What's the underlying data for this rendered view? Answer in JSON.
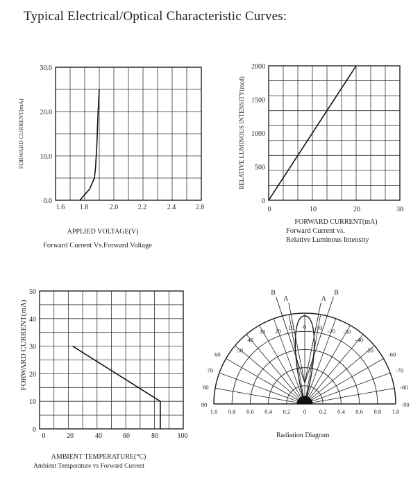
{
  "page": {
    "title": "Typical Electrical/Optical Characteristic Curves:"
  },
  "chart_data": [
    {
      "type": "line",
      "ylabel": "FORWARD CURRENT(mA)",
      "xlabel": "APPLIED VOLTAGE(V)",
      "caption": "Forward Current Vs.Forward Voltage",
      "xlim": [
        1.6,
        2.8
      ],
      "ylim": [
        0,
        30
      ],
      "xticks": [
        "1.6",
        "1.8",
        "2.0",
        "2.2",
        "2.4",
        "2.8"
      ],
      "yticks": [
        "0.0",
        "10.0",
        "20.0",
        "30.0"
      ],
      "grid": true,
      "series": [
        {
          "x": [
            1.8,
            1.88,
            1.92,
            1.93,
            1.94,
            1.95,
            1.96
          ],
          "y": [
            0,
            2.5,
            5,
            7.5,
            12.5,
            20,
            25
          ]
        }
      ]
    },
    {
      "type": "line",
      "ylabel": "RELATIVE LUMINOUS INTENSITY(mcd)",
      "xlabel": "FORWARD CURRENT(mA)",
      "caption": [
        "Forward Current vs.",
        "Relative Luminous Intensity"
      ],
      "xlim": [
        0,
        30
      ],
      "ylim": [
        0,
        2000
      ],
      "xticks": [
        "0",
        "10",
        "20",
        "30"
      ],
      "yticks": [
        "0",
        "500",
        "1000",
        "1500",
        "2000"
      ],
      "grid": true,
      "series": [
        {
          "x": [
            0,
            20
          ],
          "y": [
            0,
            2000
          ]
        }
      ]
    },
    {
      "type": "line",
      "ylabel": "FORWARD CURRENT(mA)",
      "xlabel": "AMBIENT TEMPERATURE(°C)",
      "caption": "Ambient Temperature vs Forward Current",
      "xlim": [
        0,
        100
      ],
      "ylim": [
        0,
        50
      ],
      "xticks": [
        "0",
        "20",
        "40",
        "60",
        "80",
        "100"
      ],
      "yticks": [
        "0",
        "10",
        "20",
        "30",
        "40",
        "50"
      ],
      "grid": true,
      "series": [
        {
          "x": [
            23,
            84,
            84
          ],
          "y": [
            30,
            10,
            0
          ]
        }
      ]
    },
    {
      "type": "polar",
      "caption": "Radiation Diagram",
      "angles": [
        "90",
        "80",
        "70",
        "60",
        "50",
        "40",
        "30",
        "20",
        "10",
        "0",
        "-10",
        "-20",
        "-30",
        "-40",
        "-50",
        "-60",
        "-70",
        "-80",
        "-90"
      ],
      "radial_ticks": [
        "1.0",
        "0.8",
        "0.6",
        "0.4",
        "0.2",
        "0",
        "0.2",
        "0.4",
        "0.6",
        "0.8",
        "1.0"
      ],
      "beam_labels": {
        "a": "A",
        "b": "B"
      },
      "beam_a_half_angle_deg": 9,
      "beam_b_half_angle_deg": 15
    }
  ]
}
